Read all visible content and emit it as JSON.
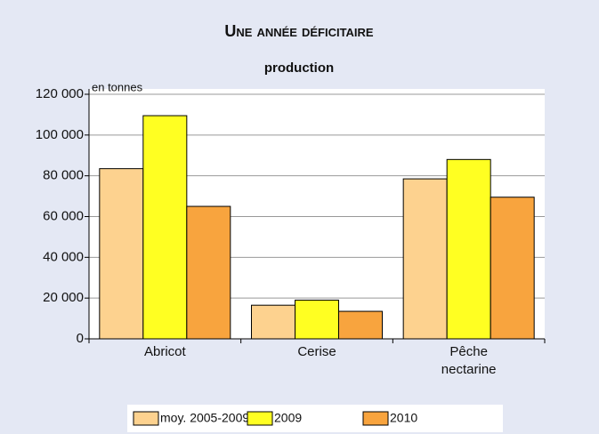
{
  "chart_data": {
    "type": "bar",
    "title": "Une année déficitaire",
    "subtitle": "production",
    "y_unit": "en tonnes",
    "categories": [
      "Abricot",
      "Cerise",
      "Pêche nectarine"
    ],
    "series": [
      {
        "name": "moy. 2005-2009",
        "color": "#fdd28f",
        "values": [
          83500,
          16500,
          78500
        ]
      },
      {
        "name": "2009",
        "color": "#ffff22",
        "values": [
          109500,
          19000,
          88000
        ]
      },
      {
        "name": "2010",
        "color": "#f8a43e",
        "values": [
          65000,
          13500,
          69500
        ]
      }
    ],
    "ylim": [
      0,
      120000
    ],
    "yticks": [
      0,
      {
        "value": 20000,
        "label": "20 000"
      },
      {
        "value": 40000,
        "label": "40 000"
      },
      {
        "value": 60000,
        "label": "60 000"
      },
      {
        "value": 80000,
        "label": "80 000"
      },
      {
        "value": 100000,
        "label": "100 000"
      },
      {
        "value": 120000,
        "label": "120 000"
      }
    ],
    "grid": true,
    "legend": "bottom"
  }
}
